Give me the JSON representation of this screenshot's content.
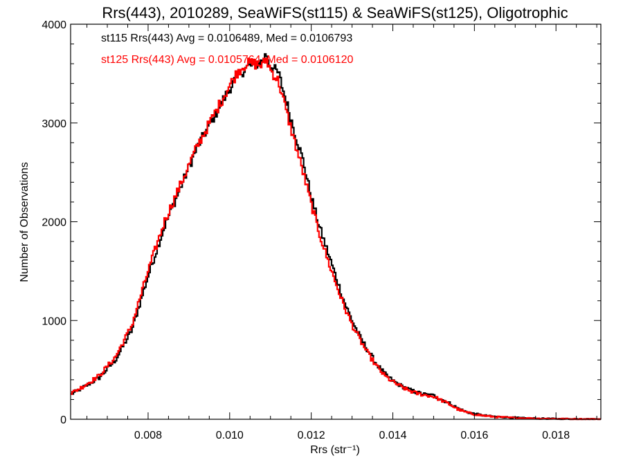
{
  "chart_data": {
    "type": "line",
    "title": "Rrs(443), 2010289, SeaWiFS(st115) & SeaWiFS(st125), Oligotrophic",
    "xlabel": "Rrs (str⁻¹)",
    "ylabel": "Number of Observations",
    "xlim": [
      0.0061,
      0.0191
    ],
    "ylim": [
      0,
      4000
    ],
    "xticks": [
      0.008,
      0.01,
      0.012,
      0.014,
      0.016,
      0.018
    ],
    "xtick_labels": [
      "0.008",
      "0.010",
      "0.012",
      "0.014",
      "0.016",
      "0.018"
    ],
    "yticks": [
      0,
      1000,
      2000,
      3000,
      4000
    ],
    "ytick_labels": [
      "0",
      "1000",
      "2000",
      "3000",
      "4000"
    ],
    "grid": false,
    "legend_placement": "top-left",
    "series": [
      {
        "name": "st115",
        "color": "#000000",
        "legend_text": "st115 Rrs(443) Avg = 0.0106489, Med = 0.0106793",
        "x": [
          0.0061,
          0.0064,
          0.0068,
          0.0072,
          0.0076,
          0.008,
          0.0084,
          0.0088,
          0.0092,
          0.0096,
          0.01,
          0.0102,
          0.0104,
          0.0106,
          0.0108,
          0.0109,
          0.011,
          0.0112,
          0.0114,
          0.0116,
          0.0118,
          0.012,
          0.0122,
          0.0124,
          0.0126,
          0.0128,
          0.013,
          0.0132,
          0.0134,
          0.0136,
          0.0138,
          0.014,
          0.0142,
          0.0144,
          0.0146,
          0.0148,
          0.015,
          0.0152,
          0.0154,
          0.0156,
          0.0158,
          0.016,
          0.0162,
          0.0164,
          0.0166,
          0.0168,
          0.017,
          0.0172,
          0.0174,
          0.0176,
          0.0178,
          0.018,
          0.0182,
          0.0184,
          0.0186,
          0.0188,
          0.0191
        ],
        "y": [
          250,
          320,
          420,
          600,
          900,
          1450,
          1950,
          2350,
          2750,
          3050,
          3350,
          3470,
          3560,
          3590,
          3620,
          3700,
          3580,
          3500,
          3200,
          2900,
          2620,
          2250,
          1950,
          1700,
          1450,
          1200,
          1000,
          830,
          690,
          560,
          460,
          390,
          340,
          300,
          270,
          250,
          240,
          200,
          160,
          110,
          75,
          55,
          40,
          30,
          25,
          20,
          15,
          12,
          10,
          8,
          6,
          5,
          4,
          3,
          3,
          2,
          2
        ]
      },
      {
        "name": "st125",
        "color": "#ff0000",
        "legend_text": "st125 Rrs(443) Avg = 0.0105764, Med = 0.0106120",
        "x": [
          0.0061,
          0.0064,
          0.0068,
          0.0072,
          0.0076,
          0.008,
          0.0084,
          0.0088,
          0.0092,
          0.0096,
          0.01,
          0.0102,
          0.0104,
          0.0106,
          0.0108,
          0.0109,
          0.011,
          0.0112,
          0.0114,
          0.0116,
          0.0118,
          0.012,
          0.0122,
          0.0124,
          0.0126,
          0.0128,
          0.013,
          0.0132,
          0.0134,
          0.0136,
          0.0138,
          0.014,
          0.0142,
          0.0144,
          0.0146,
          0.0148,
          0.015,
          0.0152,
          0.0154,
          0.0156,
          0.0158,
          0.016,
          0.0162,
          0.0164,
          0.0166,
          0.0168,
          0.017,
          0.0172,
          0.0174,
          0.0176,
          0.0178,
          0.018,
          0.0182,
          0.0184,
          0.0186,
          0.0188,
          0.0191
        ],
        "y": [
          260,
          330,
          440,
          630,
          950,
          1500,
          2000,
          2380,
          2760,
          3070,
          3380,
          3520,
          3600,
          3600,
          3580,
          3650,
          3540,
          3420,
          3100,
          2800,
          2500,
          2180,
          1880,
          1620,
          1380,
          1150,
          960,
          800,
          660,
          540,
          440,
          380,
          330,
          290,
          260,
          245,
          230,
          190,
          150,
          100,
          70,
          50,
          38,
          28,
          22,
          18,
          14,
          11,
          9,
          7,
          6,
          5,
          4,
          3,
          3,
          2,
          2
        ]
      }
    ]
  }
}
